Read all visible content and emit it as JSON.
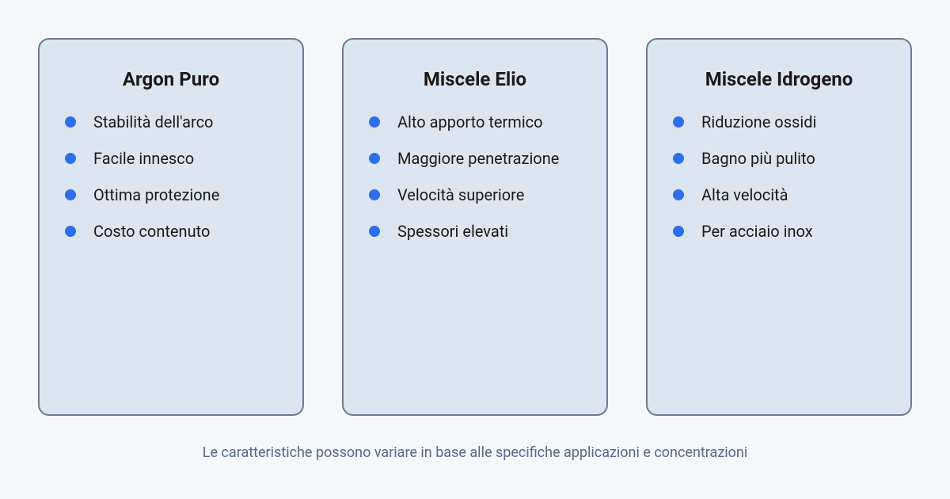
{
  "layout": {
    "background_color": "#f5f7fa",
    "card_background_color": "#dde6f0",
    "card_border_color": "#6b7a99",
    "card_border_radius": 14,
    "bullet_color": "#2f6fed",
    "footer_color": "#55698a",
    "title_fontsize": 24,
    "item_fontsize": 20,
    "footer_fontsize": 18
  },
  "cards": [
    {
      "title": "Argon Puro",
      "items": [
        "Stabilità dell'arco",
        "Facile innesco",
        "Ottima protezione",
        "Costo contenuto"
      ]
    },
    {
      "title": "Miscele Elio",
      "items": [
        "Alto apporto termico",
        "Maggiore penetrazione",
        "Velocità superiore",
        "Spessori elevati"
      ]
    },
    {
      "title": "Miscele Idrogeno",
      "items": [
        "Riduzione ossidi",
        "Bagno più pulito",
        "Alta velocità",
        "Per acciaio inox"
      ]
    }
  ],
  "footer": "Le caratteristiche possono variare in base alle specifiche applicazioni e concentrazioni"
}
